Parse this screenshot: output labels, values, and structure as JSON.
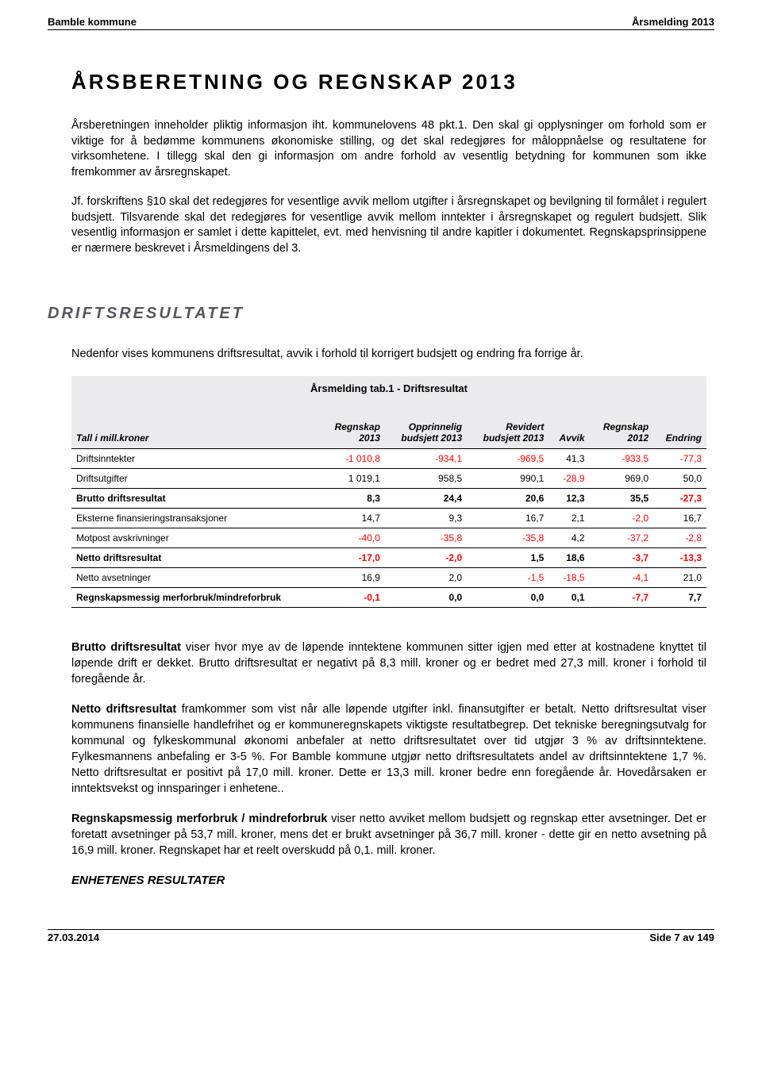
{
  "header": {
    "left": "Bamble kommune",
    "right": "Årsmelding 2013"
  },
  "title": "ÅRSBERETNING OG REGNSKAP 2013",
  "intro": {
    "p1": "Årsberetningen inneholder pliktig informasjon iht. kommunelovens 48 pkt.1. Den skal gi opplysninger om forhold som er viktige for å bedømme kommunens økonomiske stilling, og det skal redegjøres for måloppnåelse og resultatene for virksomhetene. I tillegg skal den gi informasjon om andre forhold av vesentlig betydning for kommunen som ikke fremkommer av årsregnskapet.",
    "p2": "Jf. forskriftens §10 skal det redegjøres for vesentlige avvik mellom utgifter i årsregnskapet og bevilgning til formålet i regulert budsjett. Tilsvarende skal det redegjøres for vesentlige avvik mellom inntekter i årsregnskapet og regulert budsjett. Slik vesentlig informasjon er samlet i dette kapittelet, evt. med henvisning til andre kapitler i dokumentet. Regnskapsprinsippene er nærmere beskrevet i Årsmeldingens del 3."
  },
  "section": {
    "title": "DRIFTSRESULTATET",
    "intro": "Nedenfor vises kommunens driftsresultat, avvik i forhold til korrigert budsjett og endring fra forrige år."
  },
  "table": {
    "caption": "Årsmelding tab.1 - Driftsresultat",
    "columns": [
      "Tall i mill.kroner",
      "Regnskap 2013",
      "Opprinnelig budsjett 2013",
      "Revidert budsjett 2013",
      "Avvik",
      "Regnskap 2012",
      "Endring"
    ],
    "rows": [
      {
        "label": "Driftsinntekter",
        "bold": false,
        "cells": [
          {
            "v": "-1 010,8",
            "neg": true
          },
          {
            "v": "-934,1",
            "neg": true
          },
          {
            "v": "-969,5",
            "neg": true
          },
          {
            "v": "41,3",
            "neg": false
          },
          {
            "v": "-933,5",
            "neg": true
          },
          {
            "v": "-77,3",
            "neg": true
          }
        ]
      },
      {
        "label": "Driftsutgifter",
        "bold": false,
        "cells": [
          {
            "v": "1 019,1",
            "neg": false
          },
          {
            "v": "958,5",
            "neg": false
          },
          {
            "v": "990,1",
            "neg": false
          },
          {
            "v": "-28,9",
            "neg": true
          },
          {
            "v": "969,0",
            "neg": false
          },
          {
            "v": "50,0",
            "neg": false
          }
        ]
      },
      {
        "label": "Brutto driftsresultat",
        "bold": true,
        "cells": [
          {
            "v": "8,3",
            "neg": false
          },
          {
            "v": "24,4",
            "neg": false
          },
          {
            "v": "20,6",
            "neg": false
          },
          {
            "v": "12,3",
            "neg": false
          },
          {
            "v": "35,5",
            "neg": false
          },
          {
            "v": "-27,3",
            "neg": true
          }
        ]
      },
      {
        "label": "Eksterne finansieringstransaksjoner",
        "bold": false,
        "cells": [
          {
            "v": "14,7",
            "neg": false
          },
          {
            "v": "9,3",
            "neg": false
          },
          {
            "v": "16,7",
            "neg": false
          },
          {
            "v": "2,1",
            "neg": false
          },
          {
            "v": "-2,0",
            "neg": true
          },
          {
            "v": "16,7",
            "neg": false
          }
        ]
      },
      {
        "label": "Motpost avskrivninger",
        "bold": false,
        "cells": [
          {
            "v": "-40,0",
            "neg": true
          },
          {
            "v": "-35,8",
            "neg": true
          },
          {
            "v": "-35,8",
            "neg": true
          },
          {
            "v": "4,2",
            "neg": false
          },
          {
            "v": "-37,2",
            "neg": true
          },
          {
            "v": "-2,8",
            "neg": true
          }
        ]
      },
      {
        "label": "Netto driftsresultat",
        "bold": true,
        "cells": [
          {
            "v": "-17,0",
            "neg": true
          },
          {
            "v": "-2,0",
            "neg": true
          },
          {
            "v": "1,5",
            "neg": false
          },
          {
            "v": "18,6",
            "neg": false
          },
          {
            "v": "-3,7",
            "neg": true
          },
          {
            "v": "-13,3",
            "neg": true
          }
        ]
      },
      {
        "label": "Netto avsetninger",
        "bold": false,
        "cells": [
          {
            "v": "16,9",
            "neg": false
          },
          {
            "v": "2,0",
            "neg": false
          },
          {
            "v": "-1,5",
            "neg": true
          },
          {
            "v": "-18,5",
            "neg": true
          },
          {
            "v": "-4,1",
            "neg": true
          },
          {
            "v": "21,0",
            "neg": false
          }
        ]
      },
      {
        "label": "Regnskapsmessig merforbruk/mindreforbruk",
        "bold": true,
        "cells": [
          {
            "v": "-0,1",
            "neg": true
          },
          {
            "v": "0,0",
            "neg": false
          },
          {
            "v": "0,0",
            "neg": false
          },
          {
            "v": "0,1",
            "neg": false
          },
          {
            "v": "-7,7",
            "neg": true
          },
          {
            "v": "7,7",
            "neg": false
          }
        ]
      }
    ]
  },
  "analysis": {
    "brutto_label": "Brutto driftsresultat",
    "brutto_text": " viser hvor mye av de løpende inntektene kommunen sitter igjen med etter at kostnadene knyttet til løpende drift er dekket.  Brutto driftsresultat er negativt på  8,3 mill. kroner og er bedret med 27,3 mill. kroner i forhold til foregående år.",
    "netto_label": "Netto driftsresultat",
    "netto_text": " framkommer som vist når alle løpende utgifter inkl. finansutgifter er betalt. Netto driftsresultat viser kommunens finansielle handlefrihet og er kommuneregnskapets viktigste resultatbegrep.  Det tekniske beregningsutvalg for kommunal og fylkeskommunal økonomi anbefaler at netto driftsresultatet over tid utgjør 3 % av driftsinntektene.  Fylkesmannens anbefaling er 3-5 %. For Bamble kommune utgjør netto driftsresultatets andel av driftsinntektene 1,7 %. Netto driftsresultat er positivt på 17,0 mill. kroner. Dette er 13,3 mill. kroner bedre enn foregående år.  Hovedårsaken er inntektsvekst og innsparinger i enhetene..",
    "mer_label": "Regnskapsmessig merforbruk / mindreforbruk",
    "mer_text": " viser netto avviket mellom budsjett og regnskap etter avsetninger.  Det er foretatt avsetninger på 53,7 mill. kroner, mens det er brukt avsetninger på 36,7 mill. kroner - dette gir en netto avsetning på 16,9 mill. kroner.  Regnskapet har et reelt overskudd på 0,1. mill. kroner.",
    "subhead": "ENHETENES RESULTATER"
  },
  "footer": {
    "left": "27.03.2014",
    "right": "Side 7 av 149"
  }
}
